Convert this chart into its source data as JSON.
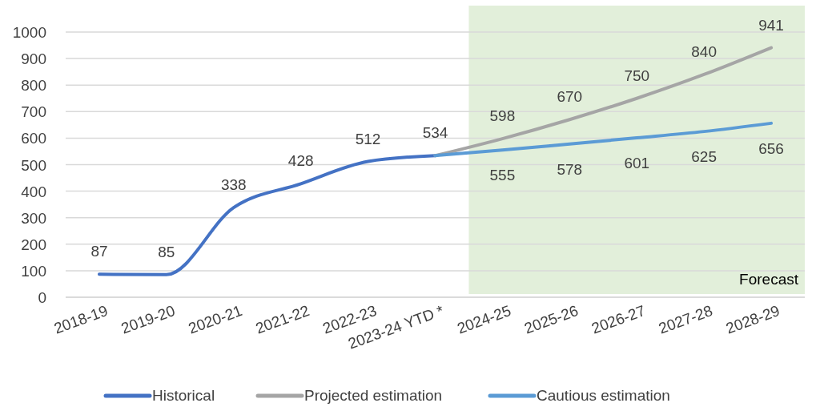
{
  "chart_data": {
    "type": "line",
    "categories": [
      "2018-19",
      "2019-20",
      "2020-21",
      "2021-22",
      "2022-23",
      "2023-24 YTD *",
      "2024-25",
      "2025-26",
      "2026-27",
      "2027-28",
      "2028-29"
    ],
    "series": [
      {
        "name": "Historical",
        "color": "#4472c4",
        "values": [
          87,
          85,
          338,
          428,
          512,
          534,
          null,
          null,
          null,
          null,
          null
        ],
        "value_labels": [
          "87",
          "85",
          "338",
          "428",
          "512",
          "534",
          null,
          null,
          null,
          null,
          null
        ]
      },
      {
        "name": "Projected estimation",
        "color": "#a5a5a5",
        "values": [
          null,
          null,
          null,
          null,
          null,
          534,
          598,
          670,
          750,
          840,
          941
        ],
        "value_labels": [
          null,
          null,
          null,
          null,
          null,
          null,
          "598",
          "670",
          "750",
          "840",
          "941"
        ]
      },
      {
        "name": "Cautious estimation",
        "color": "#5b9bd5",
        "values": [
          null,
          null,
          null,
          null,
          null,
          534,
          555,
          578,
          601,
          625,
          656
        ],
        "value_labels": [
          null,
          null,
          null,
          null,
          null,
          null,
          "555",
          "578",
          "601",
          "625",
          "656"
        ]
      }
    ],
    "ylim": [
      0,
      1000
    ],
    "yticks": [
      0,
      100,
      200,
      300,
      400,
      500,
      600,
      700,
      800,
      900,
      1000
    ],
    "grid": "y",
    "legend": "bottom",
    "marker": "none",
    "line_style": "solid",
    "bands": [
      {
        "axis": "x",
        "from": "2024-25",
        "to": "2028-29",
        "label": "Forecast",
        "color": "#e2efda"
      }
    ]
  }
}
